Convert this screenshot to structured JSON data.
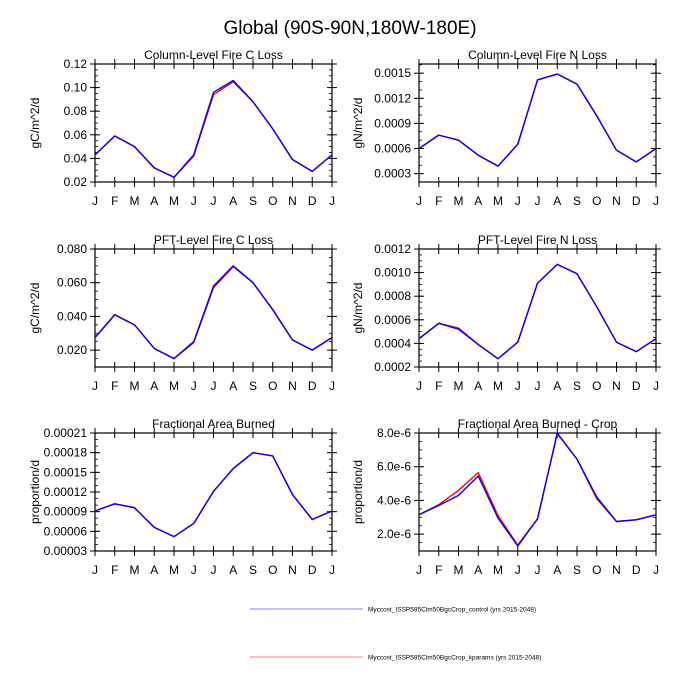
{
  "figure": {
    "title": "Global (90S-90N,180W-180E)"
  },
  "legend": {
    "placement": "bottom-center",
    "entries": [
      {
        "label": "Myccost_ISSP585Clm50BgcCrop_control (yrs 2015-2048)",
        "color": "#0000ff"
      },
      {
        "label": "Myccost_ISSP585Clm50BgcCrop_kparams (yrs 2015-2048)",
        "color": "#ff0000"
      }
    ]
  },
  "chart_data": [
    {
      "type": "line",
      "title": "Column-Level Fire C Loss",
      "ylabel": "gC/m^2/d",
      "xlabel": "",
      "categories": [
        "J",
        "F",
        "M",
        "A",
        "M",
        "J",
        "J",
        "A",
        "S",
        "O",
        "N",
        "D",
        "J"
      ],
      "ylim": [
        0.02,
        0.12
      ],
      "yticks": [
        0.02,
        0.04,
        0.06,
        0.08,
        0.1,
        0.12
      ],
      "ytick_labels": [
        "0.02",
        "0.04",
        "0.06",
        "0.08",
        "0.10",
        "0.12"
      ],
      "minor_step": 0.005,
      "series": [
        {
          "name": "Myccost_ISSP585Clm50BgcCrop_kparams (yrs 2015-2048)",
          "color": "#ff0000",
          "values": [
            0.043,
            0.059,
            0.05,
            0.032,
            0.024,
            0.042,
            0.094,
            0.105,
            0.088,
            0.065,
            0.039,
            0.029,
            0.043
          ]
        },
        {
          "name": "Myccost_ISSP585Clm50BgcCrop_control (yrs 2015-2048)",
          "color": "#0000ff",
          "values": [
            0.043,
            0.059,
            0.05,
            0.032,
            0.024,
            0.043,
            0.096,
            0.106,
            0.088,
            0.065,
            0.039,
            0.029,
            0.043
          ]
        }
      ]
    },
    {
      "type": "line",
      "title": "Column-Level Fire N Loss",
      "ylabel": "gN/m^2/d",
      "xlabel": "",
      "categories": [
        "J",
        "F",
        "M",
        "A",
        "M",
        "J",
        "J",
        "A",
        "S",
        "O",
        "N",
        "D",
        "J"
      ],
      "ylim": [
        0.0002,
        0.00161
      ],
      "yticks": [
        0.0003,
        0.0006,
        0.0009,
        0.0012,
        0.0015
      ],
      "ytick_labels": [
        "0.0003",
        "0.0006",
        "0.0009",
        "0.0012",
        "0.0015"
      ],
      "minor_step": 0.0001,
      "series": [
        {
          "name": "Myccost_ISSP585Clm50BgcCrop_kparams (yrs 2015-2048)",
          "color": "#ff0000",
          "values": [
            0.0006,
            0.00076,
            0.0007,
            0.00052,
            0.00039,
            0.00065,
            0.00142,
            0.00149,
            0.00137,
            0.00099,
            0.00058,
            0.00044,
            0.0006
          ]
        },
        {
          "name": "Myccost_ISSP585Clm50BgcCrop_control (yrs 2015-2048)",
          "color": "#0000ff",
          "values": [
            0.0006,
            0.00076,
            0.0007,
            0.00052,
            0.00039,
            0.00065,
            0.00142,
            0.00149,
            0.00137,
            0.00099,
            0.00058,
            0.00044,
            0.0006
          ]
        }
      ]
    },
    {
      "type": "line",
      "title": "PFT-Level Fire C Loss",
      "ylabel": "gC/m^2/d",
      "xlabel": "",
      "categories": [
        "J",
        "F",
        "M",
        "A",
        "M",
        "J",
        "J",
        "A",
        "S",
        "O",
        "N",
        "D",
        "J"
      ],
      "ylim": [
        0.01,
        0.08
      ],
      "yticks": [
        0.02,
        0.04,
        0.06,
        0.08
      ],
      "ytick_labels": [
        "0.020",
        "0.040",
        "0.060",
        "0.080"
      ],
      "minor_step": 0.005,
      "series": [
        {
          "name": "Myccost_ISSP585Clm50BgcCrop_kparams (yrs 2015-2048)",
          "color": "#ff0000",
          "values": [
            0.0275,
            0.041,
            0.035,
            0.021,
            0.015,
            0.0245,
            0.057,
            0.0695,
            0.06,
            0.044,
            0.026,
            0.02,
            0.0275
          ]
        },
        {
          "name": "Myccost_ISSP585Clm50BgcCrop_control (yrs 2015-2048)",
          "color": "#0000ff",
          "values": [
            0.0275,
            0.041,
            0.035,
            0.021,
            0.015,
            0.025,
            0.058,
            0.07,
            0.06,
            0.044,
            0.026,
            0.02,
            0.0275
          ]
        }
      ]
    },
    {
      "type": "line",
      "title": "PFT-Level Fire N Loss",
      "ylabel": "gN/m^2/d",
      "xlabel": "",
      "categories": [
        "J",
        "F",
        "M",
        "A",
        "M",
        "J",
        "J",
        "A",
        "S",
        "O",
        "N",
        "D",
        "J"
      ],
      "ylim": [
        0.0002,
        0.0012
      ],
      "yticks": [
        0.0002,
        0.0004,
        0.0006,
        0.0008,
        0.001,
        0.0012
      ],
      "ytick_labels": [
        "0.0002",
        "0.0004",
        "0.0006",
        "0.0008",
        "0.0010",
        "0.0012"
      ],
      "minor_step": 5e-05,
      "series": [
        {
          "name": "Myccost_ISSP585Clm50BgcCrop_kparams (yrs 2015-2048)",
          "color": "#ff0000",
          "values": [
            0.00044,
            0.00057,
            0.00053,
            0.00039,
            0.00027,
            0.00041,
            0.00091,
            0.00107,
            0.00099,
            0.00071,
            0.00041,
            0.00033,
            0.00044
          ]
        },
        {
          "name": "Myccost_ISSP585Clm50BgcCrop_control (yrs 2015-2048)",
          "color": "#0000ff",
          "values": [
            0.00044,
            0.00057,
            0.00052,
            0.00039,
            0.00027,
            0.00041,
            0.00091,
            0.00107,
            0.00099,
            0.00071,
            0.00041,
            0.00033,
            0.00044
          ]
        }
      ]
    },
    {
      "type": "line",
      "title": "Fractional Area Burned",
      "ylabel": "proportion/d",
      "xlabel": "",
      "categories": [
        "J",
        "F",
        "M",
        "A",
        "M",
        "J",
        "J",
        "A",
        "S",
        "O",
        "N",
        "D",
        "J"
      ],
      "ylim": [
        3e-05,
        0.00021
      ],
      "yticks": [
        3e-05,
        6e-05,
        9e-05,
        0.00012,
        0.00015,
        0.00018,
        0.00021
      ],
      "ytick_labels": [
        "0.00003",
        "0.00006",
        "0.00009",
        "0.00012",
        "0.00015",
        "0.00018",
        "0.00021"
      ],
      "minor_step": 1e-05,
      "series": [
        {
          "name": "Myccost_ISSP585Clm50BgcCrop_kparams (yrs 2015-2048)",
          "color": "#ff0000",
          "values": [
            9.1e-05,
            0.000102,
            9.6e-05,
            6.6e-05,
            5.2e-05,
            7.2e-05,
            0.000121,
            0.000156,
            0.00018,
            0.000175,
            0.000116,
            7.8e-05,
            9.1e-05
          ]
        },
        {
          "name": "Myccost_ISSP585Clm50BgcCrop_control (yrs 2015-2048)",
          "color": "#0000ff",
          "values": [
            9.1e-05,
            0.000102,
            9.6e-05,
            6.6e-05,
            5.2e-05,
            7.2e-05,
            0.000121,
            0.000156,
            0.00018,
            0.000175,
            0.000116,
            7.8e-05,
            9.1e-05
          ]
        }
      ]
    },
    {
      "type": "line",
      "title": "Fractional Area Burned - Crop",
      "ylabel": "proportion/d",
      "xlabel": "",
      "categories": [
        "J",
        "F",
        "M",
        "A",
        "M",
        "J",
        "J",
        "A",
        "S",
        "O",
        "N",
        "D",
        "J"
      ],
      "ylim": [
        1e-06,
        8e-06
      ],
      "yticks": [
        2e-06,
        4e-06,
        6e-06,
        8e-06
      ],
      "ytick_labels": [
        "2.0e-6",
        "4.0e-6",
        "6.0e-6",
        "8.0e-6"
      ],
      "minor_step": 5e-07,
      "series": [
        {
          "name": "Myccost_ISSP585Clm50BgcCrop_kparams (yrs 2015-2048)",
          "color": "#ff0000",
          "values": [
            3.15e-06,
            3.75e-06,
            4.6e-06,
            5.65e-06,
            3.1e-06,
            1.35e-06,
            2.9e-06,
            7.95e-06,
            6.45e-06,
            4.1e-06,
            2.75e-06,
            2.85e-06,
            3.15e-06
          ]
        },
        {
          "name": "Myccost_ISSP585Clm50BgcCrop_control (yrs 2015-2048)",
          "color": "#0000ff",
          "values": [
            3.15e-06,
            3.7e-06,
            4.3e-06,
            5.45e-06,
            2.95e-06,
            1.3e-06,
            2.9e-06,
            8e-06,
            6.45e-06,
            4.2e-06,
            2.75e-06,
            2.85e-06,
            3.15e-06
          ]
        }
      ]
    }
  ]
}
